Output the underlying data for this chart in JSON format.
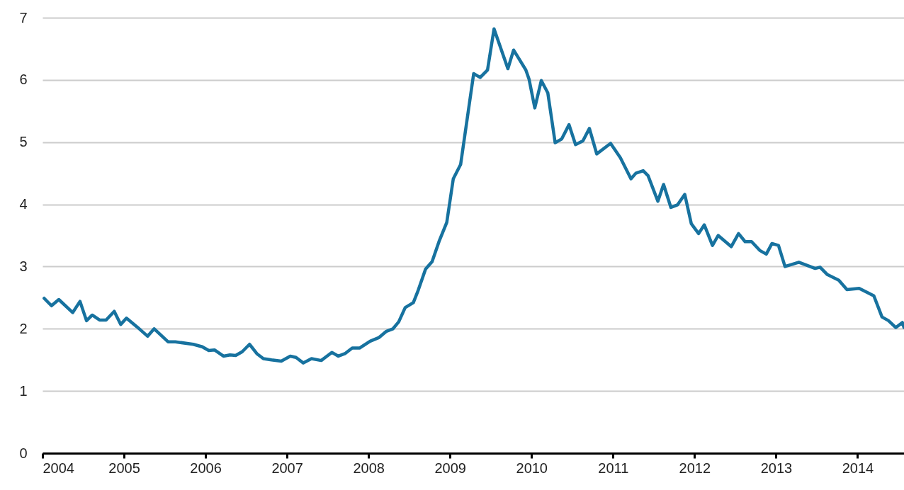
{
  "chart_data": {
    "type": "line",
    "x": [
      2004.02,
      2004.11,
      2004.2,
      2004.37,
      2004.46,
      2004.54,
      2004.61,
      2004.7,
      2004.78,
      2004.88,
      2004.96,
      2005.03,
      2005.16,
      2005.29,
      2005.37,
      2005.54,
      2005.63,
      2005.85,
      2005.96,
      2006.04,
      2006.11,
      2006.22,
      2006.3,
      2006.37,
      2006.45,
      2006.54,
      2006.63,
      2006.71,
      2006.81,
      2006.93,
      2007.04,
      2007.11,
      2007.2,
      2007.3,
      2007.42,
      2007.55,
      2007.63,
      2007.71,
      2007.8,
      2007.89,
      2008.02,
      2008.13,
      2008.22,
      2008.3,
      2008.37,
      2008.45,
      2008.55,
      2008.61,
      2008.7,
      2008.78,
      2008.87,
      2008.96,
      2009.04,
      2009.13,
      2009.29,
      2009.37,
      2009.46,
      2009.54,
      2009.71,
      2009.78,
      2009.93,
      2009.97,
      2010.04,
      2010.12,
      2010.2,
      2010.29,
      2010.37,
      2010.46,
      2010.54,
      2010.63,
      2010.71,
      2010.8,
      2010.97,
      2011.09,
      2011.22,
      2011.28,
      2011.37,
      2011.43,
      2011.55,
      2011.62,
      2011.71,
      2011.79,
      2011.88,
      2011.96,
      2012.05,
      2012.12,
      2012.22,
      2012.29,
      2012.45,
      2012.54,
      2012.62,
      2012.7,
      2012.8,
      2012.88,
      2012.95,
      2013.03,
      2013.11,
      2013.28,
      2013.48,
      2013.54,
      2013.63,
      2013.77,
      2013.87,
      2014.02,
      2014.2,
      2014.3,
      2014.38,
      2014.47,
      2014.55,
      2014.57
    ],
    "series": [
      {
        "color": "#17729f",
        "values": [
          2.49,
          2.37,
          2.47,
          2.26,
          2.44,
          2.13,
          2.22,
          2.14,
          2.14,
          2.28,
          2.07,
          2.17,
          2.03,
          1.88,
          2.0,
          1.79,
          1.79,
          1.75,
          1.71,
          1.65,
          1.66,
          1.56,
          1.58,
          1.57,
          1.63,
          1.75,
          1.6,
          1.52,
          1.5,
          1.48,
          1.56,
          1.54,
          1.45,
          1.52,
          1.49,
          1.62,
          1.56,
          1.6,
          1.69,
          1.69,
          1.8,
          1.86,
          1.96,
          2.0,
          2.11,
          2.34,
          2.42,
          2.62,
          2.96,
          3.08,
          3.42,
          3.71,
          4.41,
          4.64,
          6.1,
          6.04,
          6.16,
          6.82,
          6.18,
          6.48,
          6.16,
          6.01,
          5.55,
          5.99,
          5.79,
          4.99,
          5.05,
          5.28,
          4.96,
          5.02,
          5.22,
          4.81,
          4.98,
          4.75,
          4.41,
          4.5,
          4.54,
          4.46,
          4.05,
          4.32,
          3.95,
          3.99,
          4.16,
          3.69,
          3.53,
          3.67,
          3.34,
          3.5,
          3.32,
          3.53,
          3.4,
          3.4,
          3.26,
          3.2,
          3.37,
          3.34,
          3.0,
          3.07,
          2.97,
          2.99,
          2.87,
          2.78,
          2.63,
          2.65,
          2.53,
          2.19,
          2.13,
          2.02,
          2.1,
          2.02
        ]
      }
    ],
    "xlim": [
      2004,
      2014.57
    ],
    "xticks": [
      2004,
      2005,
      2006,
      2007,
      2008,
      2009,
      2010,
      2011,
      2012,
      2013,
      2014
    ],
    "ylim": [
      0,
      7
    ],
    "yticks": [
      0,
      1,
      2,
      3,
      4,
      5,
      6,
      7
    ],
    "grid": "y"
  }
}
